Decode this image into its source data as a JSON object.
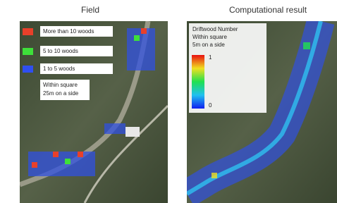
{
  "panels": [
    {
      "title": "Field",
      "legend": [
        {
          "label": "More than 10 woods",
          "color": "#e8402a"
        },
        {
          "label": "5 to 10 woods",
          "color": "#3ee03a"
        },
        {
          "label": "1 to 5 woods",
          "color": "#2f4ff0"
        }
      ],
      "note": [
        "Within square",
        "25m on a side"
      ]
    },
    {
      "title": "Computational result",
      "legend_lines": [
        "Driftwood Number",
        "Within square",
        "5m on a side"
      ],
      "colorbar_labels": [
        "1",
        "0"
      ]
    }
  ]
}
